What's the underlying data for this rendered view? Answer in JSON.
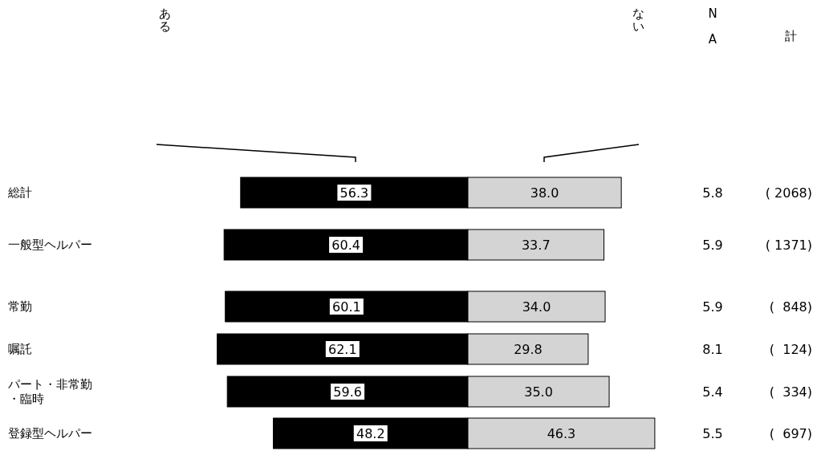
{
  "chart_data": [
    {
      "type": "bar",
      "orientation": "horizontal",
      "tick_labels": "y",
      "categories": [
        "総計",
        "一般型ヘルパー",
        "常勤",
        "嘱託",
        "パート・非常勤・臨時",
        "登録型ヘルパー"
      ],
      "series": [
        {
          "name": "ある",
          "color": "#000000",
          "values": [
            56.3,
            60.4,
            60.1,
            62.1,
            59.6,
            48.2
          ],
          "value_labels": [
            "56.3",
            "60.4",
            "60.1",
            "62.1",
            "59.6",
            "48.2"
          ]
        }
      ]
    },
    {
      "type": "bar",
      "orientation": "horizontal",
      "tick_labels": false,
      "series": [
        {
          "name": "ない",
          "color": "#d4d4d4",
          "values": [
            38.0,
            33.7,
            34.0,
            29.8,
            35.0,
            46.3
          ],
          "value_labels": [
            "38.0",
            "33.7",
            "34.0",
            "29.8",
            "35.0",
            "46.3"
          ]
        }
      ],
      "annotations": [
        "NA",
        "5.8",
        "5.9",
        "5.9",
        "8.1",
        "5.4",
        "5.5",
        "計",
        "( 2068)",
        "( 1371)",
        "(  848)",
        "(  124)",
        "(  334)",
        "(  697)"
      ]
    }
  ]
}
